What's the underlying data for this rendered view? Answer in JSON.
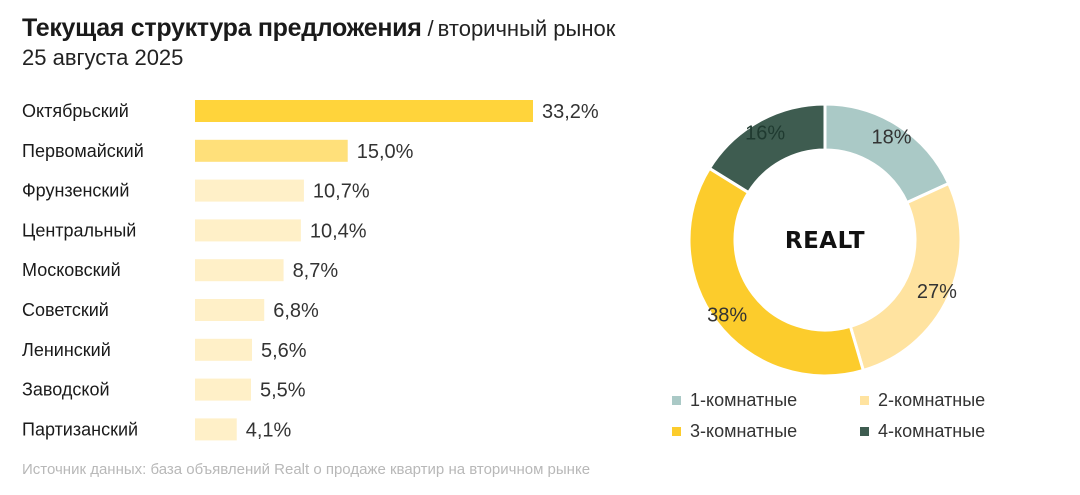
{
  "header": {
    "title": "Текущая структура предложения",
    "separator": "/",
    "subtitle": "вторичный рынок",
    "date": "25 августа 2025"
  },
  "footer": {
    "source": "Источник данных: база объявлений Realt о продаже квартир на вторичном рынке"
  },
  "chart_data": [
    {
      "type": "bar",
      "orientation": "horizontal",
      "title": "",
      "categories": [
        "Октябрьский",
        "Первомайский",
        "Фрунзенский",
        "Центральный",
        "Московский",
        "Советский",
        "Ленинский",
        "Заводской",
        "Партизанский"
      ],
      "values": [
        33.2,
        15.0,
        10.7,
        10.4,
        8.7,
        6.8,
        5.6,
        5.5,
        4.1
      ],
      "value_labels": [
        "33,2%",
        "15,0%",
        "10,7%",
        "10,4%",
        "8,7%",
        "6,8%",
        "5,6%",
        "5,5%",
        "4,1%"
      ],
      "colors": [
        "#ffd43b",
        "#ffe07a",
        "#fff0c8",
        "#fff0c8",
        "#fff0c8",
        "#fff0c8",
        "#fff0c8",
        "#fff0c8",
        "#fff0c8"
      ],
      "xlim": [
        0,
        33.2
      ],
      "grid": false,
      "unit": "%"
    },
    {
      "type": "pie",
      "variant": "donut",
      "center_label": "REALT",
      "start": "top",
      "direction": "clockwise",
      "labels": [
        "1-комнатные",
        "2-комнатные",
        "3-комнатные",
        "4-комнатные"
      ],
      "values": [
        18,
        27,
        38,
        16
      ],
      "value_labels": [
        "18%",
        "27%",
        "38%",
        "16%"
      ],
      "colors": [
        "#aac9c6",
        "#ffe3a0",
        "#fccc2c",
        "#3e5c50"
      ],
      "legend_position": "bottom"
    }
  ]
}
